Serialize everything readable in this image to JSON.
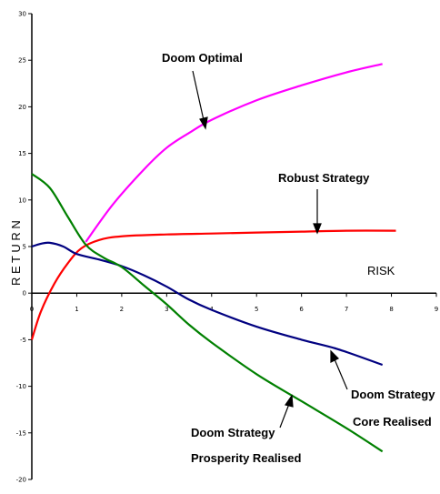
{
  "chart_data": {
    "type": "line",
    "title": "",
    "xlabel": "RISK",
    "ylabel": "R E T U R N",
    "xlim": [
      0,
      9
    ],
    "ylim": [
      -20,
      30
    ],
    "x_ticks": [
      "0",
      "1",
      "2",
      "3",
      "4",
      "5",
      "6",
      "7",
      "8",
      "9"
    ],
    "y_ticks": [
      "-20",
      "-15",
      "-10",
      "-5",
      "0",
      "5",
      "10",
      "15",
      "20",
      "25",
      "30"
    ],
    "grid": false,
    "legend": "none",
    "series": [
      {
        "color": "#ff00ff",
        "points": [
          [
            1.2,
            5.5
          ],
          [
            1.8,
            9.5
          ],
          [
            2.5,
            13.3
          ],
          [
            3.0,
            15.6
          ],
          [
            3.5,
            17.2
          ],
          [
            4.0,
            18.6
          ],
          [
            5.0,
            20.7
          ],
          [
            6.0,
            22.3
          ],
          [
            7.0,
            23.7
          ],
          [
            7.8,
            24.6
          ]
        ]
      },
      {
        "color": "#ff0000",
        "points": [
          [
            0.0,
            -5.0
          ],
          [
            0.2,
            -2.0
          ],
          [
            0.5,
            1.0
          ],
          [
            0.8,
            3.2
          ],
          [
            1.1,
            4.8
          ],
          [
            1.5,
            5.7
          ],
          [
            2.0,
            6.1
          ],
          [
            3.0,
            6.3
          ],
          [
            4.0,
            6.4
          ],
          [
            5.0,
            6.5
          ],
          [
            6.0,
            6.6
          ],
          [
            7.0,
            6.7
          ],
          [
            8.1,
            6.7
          ]
        ]
      },
      {
        "color": "#000080",
        "points": [
          [
            0.0,
            5.0
          ],
          [
            0.2,
            5.3
          ],
          [
            0.4,
            5.4
          ],
          [
            0.7,
            5.0
          ],
          [
            1.0,
            4.2
          ],
          [
            1.5,
            3.6
          ],
          [
            2.0,
            2.9
          ],
          [
            2.5,
            1.9
          ],
          [
            3.0,
            0.7
          ],
          [
            3.5,
            -0.7
          ],
          [
            4.0,
            -1.8
          ],
          [
            5.0,
            -3.6
          ],
          [
            6.0,
            -5.0
          ],
          [
            6.8,
            -6.0
          ],
          [
            7.8,
            -7.7
          ]
        ]
      },
      {
        "color": "#008000",
        "points": [
          [
            0.0,
            12.8
          ],
          [
            0.4,
            11.3
          ],
          [
            0.8,
            8.2
          ],
          [
            1.2,
            5.2
          ],
          [
            1.6,
            3.8
          ],
          [
            2.0,
            2.8
          ],
          [
            2.5,
            0.8
          ],
          [
            3.0,
            -1.2
          ],
          [
            3.5,
            -3.4
          ],
          [
            4.0,
            -5.3
          ],
          [
            5.0,
            -8.7
          ],
          [
            6.0,
            -11.6
          ],
          [
            7.0,
            -14.5
          ],
          [
            7.8,
            -17.0
          ]
        ]
      }
    ],
    "annotations": {
      "doom_optimal": "Doom Optimal",
      "robust_strategy": "Robust Strategy",
      "core_realised_line1": "Doom Strategy",
      "core_realised_line2": "Core Realised",
      "prosperity_realised_line1": "Doom Strategy",
      "prosperity_realised_line2": "Prosperity Realised"
    }
  }
}
